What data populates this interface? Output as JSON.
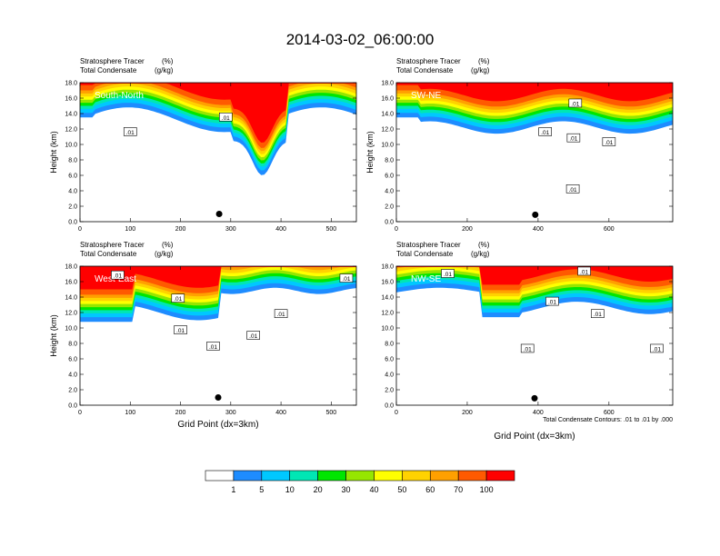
{
  "title": "2014-03-02_06:00:00",
  "contour_note": "Total Condensate Contours: .01 to .01 by .000",
  "colorbar": {
    "levels": [
      "1",
      "5",
      "10",
      "20",
      "30",
      "40",
      "50",
      "60",
      "70",
      "100"
    ],
    "colors": [
      "#ffffff",
      "#1e8cff",
      "#00c8ff",
      "#00e6b4",
      "#00e600",
      "#96e600",
      "#ffff00",
      "#ffd200",
      "#ffa000",
      "#ff5a00",
      "#ff0000"
    ]
  },
  "chart_data": [
    {
      "type": "heatmap",
      "panel": "South-North",
      "subtitle_left": "Stratosphere Tracer",
      "subtitle_left_unit": "(%)",
      "subtitle_left2": "Total Condensate",
      "subtitle_left2_unit": "(g/kg)",
      "ylabel": "Height (km)",
      "xlabel": "",
      "xlim": [
        0,
        550
      ],
      "ylim": [
        0,
        18
      ],
      "x_ticks": [
        "0",
        "100",
        "200",
        "300",
        "400",
        "500"
      ],
      "x_tick_values": [
        0,
        100,
        200,
        300,
        400,
        500
      ],
      "y_ticks": [
        "0.0",
        "2.0",
        "4.0",
        "6.0",
        "8.0",
        "10.0",
        "12.0",
        "14.0",
        "16.0",
        "18.0"
      ],
      "contour_labels": [
        {
          "text": ".01",
          "x": 290,
          "y": 13.5
        },
        {
          "text": ".01",
          "x": 100,
          "y": 11.6
        }
      ],
      "marker": {
        "x": 277,
        "y": 1.0
      }
    },
    {
      "type": "heatmap",
      "panel": "SW-NE",
      "subtitle_left": "Stratosphere Tracer",
      "subtitle_left_unit": "(%)",
      "subtitle_left2": "Total Condensate",
      "subtitle_left2_unit": "(g/kg)",
      "ylabel": "Height (km)",
      "xlabel": "",
      "xlim": [
        0,
        780
      ],
      "ylim": [
        0,
        18
      ],
      "x_ticks": [
        "0",
        "200",
        "400",
        "600"
      ],
      "x_tick_values": [
        0,
        200,
        400,
        600
      ],
      "y_ticks": [
        "0.0",
        "2.0",
        "4.0",
        "6.0",
        "8.0",
        "10.0",
        "12.0",
        "14.0",
        "16.0",
        "18.0"
      ],
      "contour_labels": [
        {
          "text": ".01",
          "x": 505,
          "y": 15.3
        },
        {
          "text": ".01",
          "x": 420,
          "y": 11.6
        },
        {
          "text": ".01",
          "x": 600,
          "y": 10.3
        },
        {
          "text": ".01",
          "x": 500,
          "y": 10.8
        },
        {
          "text": ".01",
          "x": 498,
          "y": 4.2
        }
      ],
      "marker": {
        "x": 392,
        "y": 0.9
      }
    },
    {
      "type": "heatmap",
      "panel": "West-East",
      "subtitle_left": "Stratosphere Tracer",
      "subtitle_left_unit": "(%)",
      "subtitle_left2": "Total Condensate",
      "subtitle_left2_unit": "(g/kg)",
      "ylabel": "Height (km)",
      "xlabel": "Grid Point (dx=3km)",
      "xlim": [
        0,
        550
      ],
      "ylim": [
        0,
        18
      ],
      "x_ticks": [
        "0",
        "100",
        "200",
        "300",
        "400",
        "500"
      ],
      "x_tick_values": [
        0,
        100,
        200,
        300,
        400,
        500
      ],
      "y_ticks": [
        "0.0",
        "2.0",
        "4.0",
        "6.0",
        "8.0",
        "10.0",
        "12.0",
        "14.0",
        "16.0",
        "18.0"
      ],
      "contour_labels": [
        {
          "text": ".01",
          "x": 75,
          "y": 16.8
        },
        {
          "text": ".01",
          "x": 195,
          "y": 13.8
        },
        {
          "text": ".01",
          "x": 400,
          "y": 11.8
        },
        {
          "text": ".01",
          "x": 200,
          "y": 9.7
        },
        {
          "text": ".01",
          "x": 345,
          "y": 9.0
        },
        {
          "text": ".01",
          "x": 265,
          "y": 7.6
        },
        {
          "text": ".01",
          "x": 530,
          "y": 16.4
        }
      ],
      "marker": {
        "x": 275,
        "y": 1.0
      }
    },
    {
      "type": "heatmap",
      "panel": "NW-SE",
      "subtitle_left": "Stratosphere Tracer",
      "subtitle_left_unit": "(%)",
      "subtitle_left2": "Total Condensate",
      "subtitle_left2_unit": "(g/kg)",
      "ylabel": "",
      "xlabel": "Grid Point (dx=3km)",
      "xlim": [
        0,
        780
      ],
      "ylim": [
        0,
        18
      ],
      "x_ticks": [
        "0",
        "200",
        "400",
        "600"
      ],
      "x_tick_values": [
        0,
        200,
        400,
        600
      ],
      "y_ticks": [
        "0.0",
        "2.0",
        "4.0",
        "6.0",
        "8.0",
        "10.0",
        "12.0",
        "14.0",
        "16.0",
        "18.0"
      ],
      "contour_labels": [
        {
          "text": ".01",
          "x": 145,
          "y": 17.0
        },
        {
          "text": ".01",
          "x": 530,
          "y": 17.3
        },
        {
          "text": ".01",
          "x": 440,
          "y": 13.4
        },
        {
          "text": ".01",
          "x": 568,
          "y": 11.8
        },
        {
          "text": ".01",
          "x": 370,
          "y": 7.3
        },
        {
          "text": ".01",
          "x": 735,
          "y": 7.3
        }
      ],
      "marker": {
        "x": 390,
        "y": 0.9
      }
    }
  ]
}
